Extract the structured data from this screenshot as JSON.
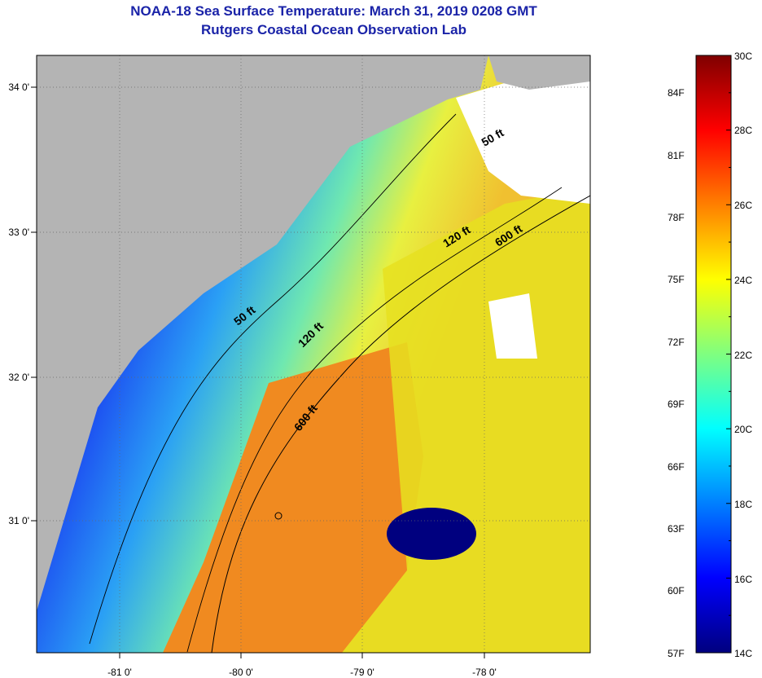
{
  "title": {
    "line1": "NOAA-18 Sea Surface Temperature:  March 31, 2019 0208 GMT",
    "line2": "Rutgers Coastal Ocean Observation Lab"
  },
  "map": {
    "lon_labels": [
      "-81 0'",
      "-80 0'",
      "-79 0'",
      "-78 0'"
    ],
    "lat_labels": [
      "34 0'",
      "33 0'",
      "32 0'",
      "31 0'"
    ],
    "contours": [
      {
        "label": "50 ft"
      },
      {
        "label": "50 ft"
      },
      {
        "label": "120 ft"
      },
      {
        "label": "120 ft"
      },
      {
        "label": "600 ft"
      },
      {
        "label": "600 ft"
      }
    ],
    "colors": {
      "land": "#b4b4b4",
      "cloud": "#ffffff"
    }
  },
  "colorbar": {
    "fahrenheit_labels": [
      "84F",
      "81F",
      "78F",
      "75F",
      "72F",
      "69F",
      "66F",
      "63F",
      "60F",
      "57F"
    ],
    "celsius_labels": [
      "30C",
      "28C",
      "26C",
      "24C",
      "22C",
      "20C",
      "18C",
      "16C",
      "14C"
    ],
    "celsius_range": [
      14,
      30
    ]
  }
}
